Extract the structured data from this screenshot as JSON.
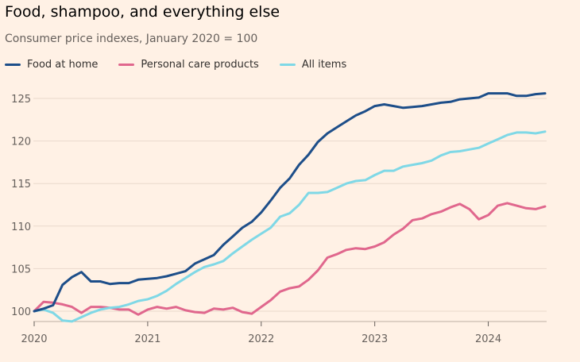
{
  "title": "Food, shampoo, and everything else",
  "subtitle": "Consumer price indexes, January 2020 = 100",
  "chart_data": {
    "type": "line",
    "title": "Food, shampoo, and everything else",
    "subtitle": "Consumer price indexes, January 2020 = 100",
    "xlabel": "",
    "ylabel": "",
    "x_ticks": [
      "2020",
      "2021",
      "2022",
      "2023",
      "2024"
    ],
    "y_ticks": [
      100,
      105,
      110,
      115,
      120,
      125
    ],
    "ylim": [
      99,
      127
    ],
    "xlim": [
      "2020-01",
      "2024-07"
    ],
    "grid": true,
    "legend_position": "top-left",
    "x": [
      "2020-01",
      "2020-02",
      "2020-03",
      "2020-04",
      "2020-05",
      "2020-06",
      "2020-07",
      "2020-08",
      "2020-09",
      "2020-10",
      "2020-11",
      "2020-12",
      "2021-01",
      "2021-02",
      "2021-03",
      "2021-04",
      "2021-05",
      "2021-06",
      "2021-07",
      "2021-08",
      "2021-09",
      "2021-10",
      "2021-11",
      "2021-12",
      "2022-01",
      "2022-02",
      "2022-03",
      "2022-04",
      "2022-05",
      "2022-06",
      "2022-07",
      "2022-08",
      "2022-09",
      "2022-10",
      "2022-11",
      "2022-12",
      "2023-01",
      "2023-02",
      "2023-03",
      "2023-04",
      "2023-05",
      "2023-06",
      "2023-07",
      "2023-08",
      "2023-09",
      "2023-10",
      "2023-11",
      "2023-12",
      "2024-01",
      "2024-02",
      "2024-03",
      "2024-04",
      "2024-05",
      "2024-06",
      "2024-07"
    ],
    "series": [
      {
        "name": "Food at home",
        "color": "#1d4e89",
        "values": [
          100,
          100.3,
          100.7,
          103.1,
          104.0,
          104.6,
          103.5,
          103.5,
          103.2,
          103.3,
          103.3,
          103.7,
          103.8,
          103.9,
          104.1,
          104.4,
          104.7,
          105.6,
          106.1,
          106.6,
          107.8,
          108.8,
          109.8,
          110.5,
          111.6,
          113.0,
          114.5,
          115.6,
          117.2,
          118.4,
          119.9,
          120.9,
          121.6,
          122.3,
          123.0,
          123.5,
          124.1,
          124.3,
          124.1,
          123.9,
          124.0,
          124.1,
          124.3,
          124.5,
          124.6,
          124.9,
          125.0,
          125.1,
          125.6,
          125.6,
          125.6,
          125.3,
          125.3,
          125.5,
          125.6
        ]
      },
      {
        "name": "Personal care products",
        "color": "#e0678d",
        "values": [
          100,
          101.1,
          101.0,
          100.8,
          100.5,
          99.8,
          100.5,
          100.5,
          100.4,
          100.2,
          100.2,
          99.6,
          100.2,
          100.5,
          100.3,
          100.5,
          100.1,
          99.9,
          99.8,
          100.3,
          100.2,
          100.4,
          99.9,
          99.7,
          100.5,
          101.3,
          102.3,
          102.7,
          102.9,
          103.7,
          104.8,
          106.3,
          106.7,
          107.2,
          107.4,
          107.3,
          107.6,
          108.1,
          109.0,
          109.7,
          110.7,
          110.9,
          111.4,
          111.7,
          112.2,
          112.6,
          112.0,
          110.8,
          111.3,
          112.4,
          112.7,
          112.4,
          112.1,
          112.0,
          112.3
        ]
      },
      {
        "name": "All items",
        "color": "#7fd8e6",
        "values": [
          100,
          100.2,
          99.8,
          98.9,
          98.8,
          99.3,
          99.8,
          100.2,
          100.4,
          100.5,
          100.8,
          101.2,
          101.4,
          101.8,
          102.4,
          103.2,
          103.9,
          104.6,
          105.2,
          105.5,
          105.9,
          106.8,
          107.6,
          108.4,
          109.1,
          109.8,
          111.1,
          111.5,
          112.5,
          113.9,
          113.9,
          114.0,
          114.5,
          115.0,
          115.3,
          115.4,
          116.0,
          116.5,
          116.5,
          117.0,
          117.2,
          117.4,
          117.7,
          118.3,
          118.7,
          118.8,
          119.0,
          119.2,
          119.7,
          120.2,
          120.7,
          121.0,
          121.0,
          120.9,
          121.1
        ]
      }
    ]
  }
}
